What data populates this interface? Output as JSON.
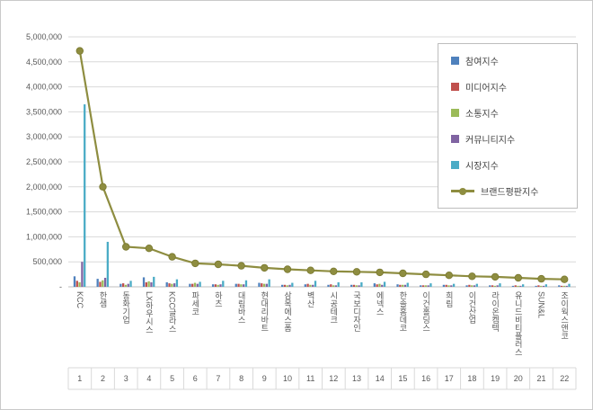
{
  "window": {
    "background": "#ffffff",
    "border_color": "#c9c9c9"
  },
  "chart_data": {
    "type": "bar",
    "title": "",
    "xlabel": "",
    "ylabel": "",
    "grid": true,
    "legend_position": "top-right",
    "categories": [
      "KCC",
      "한샘",
      "동화기업",
      "LX하우시스",
      "KCC글라스",
      "파세코",
      "하츠",
      "대림바스",
      "현대리바트",
      "삼목에스폼",
      "벽산",
      "시공테크",
      "국보디자인",
      "에넥스",
      "한솔홈데코",
      "이건홀딩스",
      "희림",
      "이건산업",
      "라이온켐텍",
      "유니드비티플러스",
      "SUN&L",
      "조이웍스앤코"
    ],
    "category_numbers": [
      "1",
      "2",
      "3",
      "4",
      "5",
      "6",
      "7",
      "8",
      "9",
      "10",
      "11",
      "12",
      "13",
      "14",
      "15",
      "16",
      "17",
      "18",
      "19",
      "20",
      "21",
      "22"
    ],
    "y_axis": {
      "min": 0,
      "max": 5000000,
      "step": 500000,
      "zero_label": "-"
    },
    "series": [
      {
        "name": "참여지수",
        "type": "bar",
        "color": "#4F81BD",
        "values": [
          210000,
          160000,
          60000,
          190000,
          90000,
          60000,
          50000,
          60000,
          80000,
          40000,
          50000,
          40000,
          40000,
          70000,
          50000,
          30000,
          40000,
          30000,
          30000,
          20000,
          20000,
          30000
        ]
      },
      {
        "name": "미디어지수",
        "type": "bar",
        "color": "#C0504D",
        "values": [
          120000,
          100000,
          70000,
          90000,
          70000,
          60000,
          50000,
          60000,
          70000,
          40000,
          60000,
          50000,
          40000,
          50000,
          40000,
          30000,
          40000,
          40000,
          30000,
          30000,
          30000,
          20000
        ]
      },
      {
        "name": "소통지수",
        "type": "bar",
        "color": "#9BBB59",
        "values": [
          90000,
          130000,
          40000,
          110000,
          60000,
          80000,
          40000,
          50000,
          60000,
          30000,
          40000,
          30000,
          30000,
          60000,
          40000,
          30000,
          30000,
          30000,
          20000,
          20000,
          20000,
          20000
        ]
      },
      {
        "name": "커뮤니티지수",
        "type": "bar",
        "color": "#8064A2",
        "values": [
          500000,
          180000,
          60000,
          90000,
          70000,
          60000,
          50000,
          50000,
          60000,
          40000,
          40000,
          30000,
          30000,
          40000,
          40000,
          30000,
          30000,
          30000,
          30000,
          20000,
          20000,
          20000
        ]
      },
      {
        "name": "시장지수",
        "type": "bar",
        "color": "#4BACC6",
        "values": [
          3650000,
          900000,
          120000,
          200000,
          150000,
          100000,
          120000,
          130000,
          150000,
          80000,
          120000,
          90000,
          90000,
          100000,
          80000,
          70000,
          60000,
          60000,
          70000,
          50000,
          50000,
          60000
        ]
      },
      {
        "name": "브랜드평판지수",
        "type": "line",
        "color": "#8E8D40",
        "values": [
          4720000,
          2000000,
          800000,
          770000,
          600000,
          470000,
          450000,
          420000,
          380000,
          350000,
          330000,
          310000,
          300000,
          290000,
          270000,
          250000,
          230000,
          210000,
          200000,
          180000,
          160000,
          150000
        ]
      }
    ]
  }
}
